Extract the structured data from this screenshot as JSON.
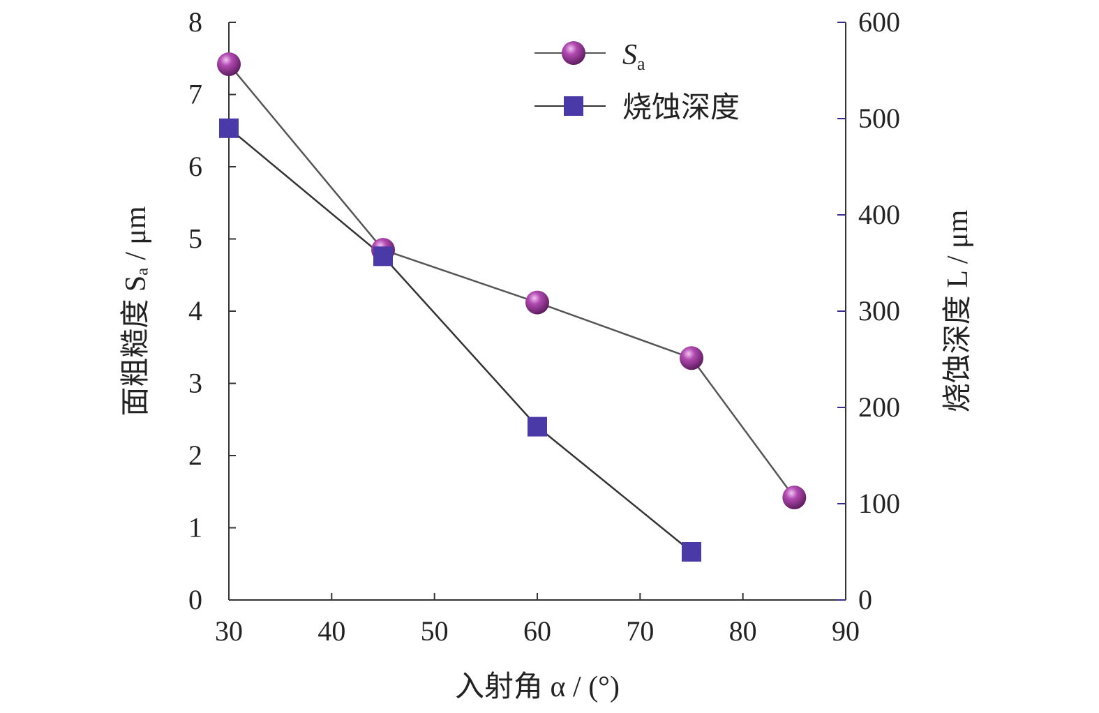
{
  "chart_data": {
    "type": "line",
    "xlabel": "入射角 α / (°)",
    "x_ticks": [
      30,
      40,
      50,
      60,
      70,
      80,
      90
    ],
    "xlim": [
      30,
      90
    ],
    "ylabel_left": "面粗糙度 Sₐ / μm",
    "ylim_left": [
      0,
      8
    ],
    "y_ticks_left": [
      0,
      1,
      2,
      3,
      4,
      5,
      6,
      7,
      8
    ],
    "ylabel_right": "烧蚀深度 L / μm",
    "ylim_right": [
      0,
      600
    ],
    "y_ticks_right": [
      0,
      100,
      200,
      300,
      400,
      500,
      600
    ],
    "legend_position": "top-center",
    "grid": false,
    "series": [
      {
        "name": "Sa",
        "axis": "left",
        "marker": "sphere",
        "color": "#9b3a9b",
        "line_color": "#555555",
        "x": [
          30,
          45,
          60,
          75,
          85
        ],
        "values": [
          7.42,
          4.85,
          4.12,
          3.35,
          1.42
        ]
      },
      {
        "name": "烧蚀深度",
        "axis": "right",
        "marker": "square",
        "color": "#4a3aa8",
        "line_color": "#333333",
        "x": [
          30,
          45,
          60,
          75
        ],
        "values": [
          490,
          357,
          180,
          50
        ]
      }
    ]
  }
}
